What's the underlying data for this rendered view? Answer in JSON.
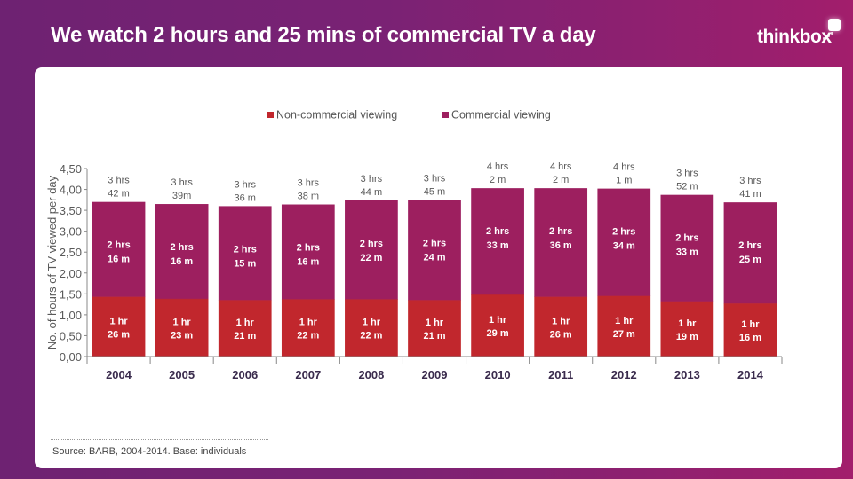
{
  "title": "We watch 2 hours and 25 mins of commercial TV a day",
  "logo": {
    "text": "thinkbox",
    "icon": "thinkbox-logo-icon"
  },
  "source": "Source: BARB, 2004-2014. Base: individuals",
  "colors": {
    "non_commercial": "#c1272d",
    "commercial": "#9d1f5f",
    "background": "#7a2274"
  },
  "chart_data": {
    "type": "bar",
    "stacked": true,
    "title": "",
    "xlabel": "",
    "ylabel": "No. of hours of TV viewed per day",
    "ylim": [
      0,
      4.5
    ],
    "yticks": [
      "0,00",
      "0,50",
      "1,00",
      "1,50",
      "2,00",
      "2,50",
      "3,00",
      "3,50",
      "4,00",
      "4,50"
    ],
    "legend_position": "top",
    "categories": [
      "2004",
      "2005",
      "2006",
      "2007",
      "2008",
      "2009",
      "2010",
      "2011",
      "2012",
      "2013",
      "2014"
    ],
    "series": [
      {
        "name": "Non-commercial viewing",
        "color": "#c1272d",
        "values": [
          1.43,
          1.38,
          1.35,
          1.37,
          1.37,
          1.35,
          1.48,
          1.43,
          1.45,
          1.32,
          1.27
        ],
        "labels": [
          [
            "1 hr",
            "26 m"
          ],
          [
            "1 hr",
            "23 m"
          ],
          [
            "1 hr",
            "21 m"
          ],
          [
            "1 hr",
            "22 m"
          ],
          [
            "1 hr",
            "22 m"
          ],
          [
            "1 hr",
            "21 m"
          ],
          [
            "1 hr",
            "29 m"
          ],
          [
            "1 hr",
            "26 m"
          ],
          [
            "1 hr",
            "27 m"
          ],
          [
            "1 hr",
            "19 m"
          ],
          [
            "1 hr",
            "16 m"
          ]
        ]
      },
      {
        "name": "Commercial viewing",
        "color": "#9d1f5f",
        "values": [
          2.27,
          2.27,
          2.25,
          2.27,
          2.37,
          2.4,
          2.55,
          2.6,
          2.57,
          2.55,
          2.42
        ],
        "labels": [
          [
            "2 hrs",
            "16 m"
          ],
          [
            "2 hrs",
            "16 m"
          ],
          [
            "2 hrs",
            "15 m"
          ],
          [
            "2 hrs",
            "16 m"
          ],
          [
            "2 hrs",
            "22 m"
          ],
          [
            "2 hrs",
            "24 m"
          ],
          [
            "2 hrs",
            "33 m"
          ],
          [
            "2 hrs",
            "36 m"
          ],
          [
            "2 hrs",
            "34 m"
          ],
          [
            "2 hrs",
            "33 m"
          ],
          [
            "2 hrs",
            "25 m"
          ]
        ]
      }
    ],
    "totals": [
      [
        "3 hrs",
        "42 m"
      ],
      [
        "3 hrs",
        "39m"
      ],
      [
        "3 hrs",
        "36 m"
      ],
      [
        "3 hrs",
        "38 m"
      ],
      [
        "3 hrs",
        "44 m"
      ],
      [
        "3 hrs",
        "45 m"
      ],
      [
        "4 hrs",
        "2 m"
      ],
      [
        "4 hrs",
        "2 m"
      ],
      [
        "4 hrs",
        "1 m"
      ],
      [
        "3 hrs",
        "52 m"
      ],
      [
        "3 hrs",
        "41 m"
      ]
    ]
  }
}
